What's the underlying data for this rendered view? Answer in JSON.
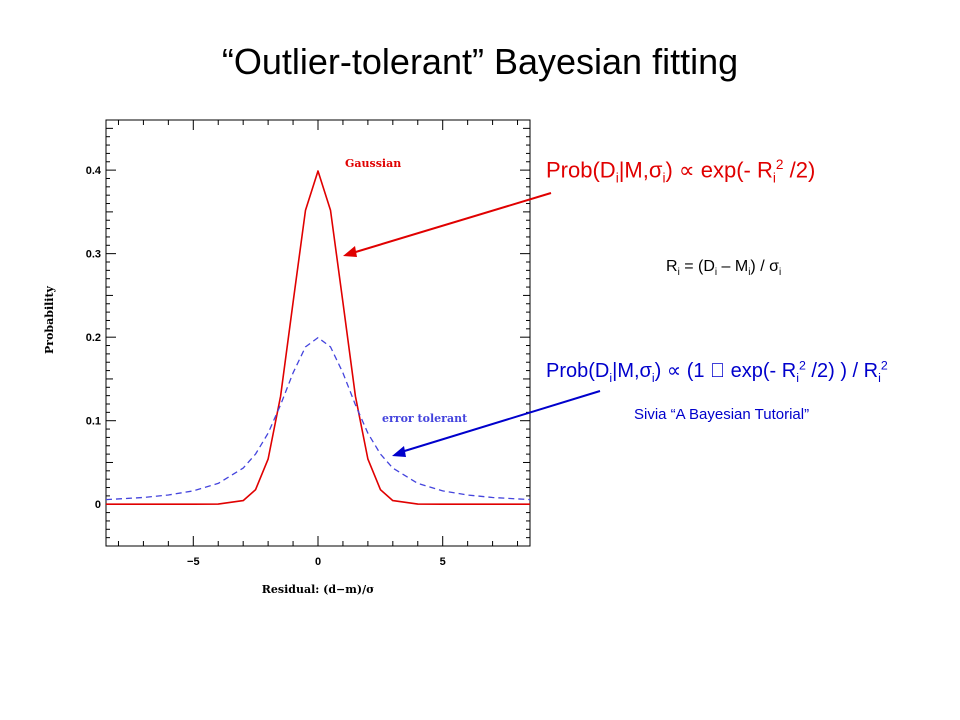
{
  "slide": {
    "title": "“Outlier-tolerant” Bayesian fitting",
    "citation": "Sivia “A Bayesian Tutorial”"
  },
  "formulas": {
    "gaussian": {
      "prefix": "Prob(D",
      "sub1": "i",
      "mid1": "|M,σ",
      "sub2": "i",
      "mid2": ") ∝ exp(- R",
      "sub3": "i",
      "sup": "2",
      "suffix": " /2)"
    },
    "tolerant": {
      "prefix": "Prob(D",
      "sub1": "i",
      "mid1": "|M,σ",
      "sub2": "i",
      "mid2": ") ∝ (1  exp(- R",
      "sub3": "i",
      "sup": "2",
      "mid3": " /2) ) / R",
      "sub4": "i",
      "sup2": "2"
    },
    "residual": {
      "p1": "R",
      "s1": "i",
      "p2": " = (D",
      "s2": "i",
      "p3": " – M",
      "s3": "i",
      "p4": ") / σ",
      "s4": "i"
    }
  },
  "colors": {
    "gaussian": "#e00000",
    "tolerant": "#4444dd",
    "arrow_red": "#e00000",
    "arrow_blue": "#0000cc"
  },
  "chart_data": {
    "type": "line",
    "xlabel": "Residual: (d−m)/σ",
    "ylabel": "Probability",
    "xlim": [
      -8.5,
      8.5
    ],
    "ylim": [
      -0.05,
      0.46
    ],
    "x_ticks": [
      -5,
      0,
      5
    ],
    "x_tick_labels": [
      "−5",
      "0",
      "5"
    ],
    "y_ticks": [
      0,
      0.1,
      0.2,
      0.3,
      0.4
    ],
    "y_tick_labels": [
      "0",
      "0.1",
      "0.2",
      "0.3",
      "0.4"
    ],
    "series": [
      {
        "name": "Gaussian",
        "style": "solid",
        "x": [
          -8.5,
          -5,
          -4,
          -3,
          -2.5,
          -2,
          -1.5,
          -1,
          -0.5,
          0,
          0.5,
          1,
          1.5,
          2,
          2.5,
          3,
          4,
          5,
          8.5
        ],
        "y": [
          0,
          1.5e-06,
          0.00013,
          0.0044,
          0.0175,
          0.054,
          0.1295,
          0.242,
          0.352,
          0.399,
          0.352,
          0.242,
          0.1295,
          0.054,
          0.0175,
          0.0044,
          0.00013,
          1.5e-06,
          0
        ]
      },
      {
        "name": "error tolerant",
        "style": "dashed",
        "x": [
          -8.5,
          -7,
          -6,
          -5,
          -4,
          -3,
          -2.5,
          -2,
          -1.5,
          -1,
          -0.5,
          0,
          0.5,
          1,
          1.5,
          2,
          2.5,
          3,
          4,
          5,
          6,
          7,
          8.5
        ],
        "y": [
          0.0055,
          0.0081,
          0.011,
          0.016,
          0.0249,
          0.0433,
          0.0601,
          0.0851,
          0.1191,
          0.1573,
          0.1883,
          0.1995,
          0.1883,
          0.1573,
          0.1191,
          0.0851,
          0.0601,
          0.0433,
          0.0249,
          0.016,
          0.011,
          0.0081,
          0.0055
        ]
      }
    ]
  }
}
